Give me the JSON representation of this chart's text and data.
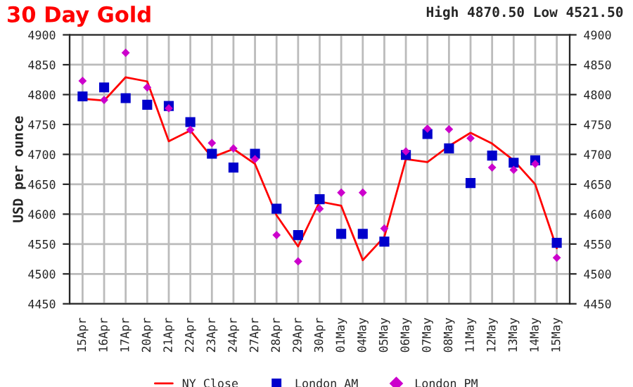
{
  "chart_data": {
    "type": "line",
    "title": "30 Day Gold",
    "subtitle": "High 4870.50 Low 4521.50",
    "ylabel": "USD per ounce",
    "categories": [
      "15Apr",
      "16Apr",
      "17Apr",
      "20Apr",
      "21Apr",
      "22Apr",
      "23Apr",
      "24Apr",
      "27Apr",
      "28Apr",
      "29Apr",
      "30Apr",
      "01May",
      "04May",
      "05May",
      "06May",
      "07May",
      "08May",
      "11May",
      "12May",
      "13May",
      "14May",
      "15May"
    ],
    "series": [
      {
        "name": "NY Close",
        "marker": "none",
        "color": "#ff0000",
        "values": [
          4793,
          4790,
          4829,
          4822,
          4722,
          4740,
          4695,
          4709,
          4684,
          4598,
          4546,
          4621,
          4614,
          4523,
          4562,
          4692,
          4687,
          4714,
          4736,
          4718,
          4690,
          4650,
          4543
        ]
      },
      {
        "name": "London AM",
        "type": "scatter",
        "marker": "square",
        "color": "#0000cc",
        "values": [
          4797,
          4812,
          4794,
          4783,
          4781,
          4754,
          4701,
          4678,
          4701,
          4609,
          4565,
          4625,
          4567,
          4567,
          4554,
          4699,
          4734,
          4710,
          4652,
          4698,
          4686,
          4690,
          4552
        ]
      },
      {
        "name": "London PM",
        "type": "scatter",
        "marker": "diamond",
        "color": "#cc00cc",
        "values": [
          4823,
          4791,
          4870,
          4812,
          4777,
          4741,
          4719,
          4710,
          4692,
          4565,
          4521,
          4609,
          4636,
          4636,
          4576,
          4705,
          4743,
          4742,
          4727,
          4678,
          4674,
          4684,
          4527
        ]
      }
    ],
    "ylim": [
      4450,
      4900
    ],
    "yticks": [
      4450,
      4500,
      4550,
      4600,
      4650,
      4700,
      4750,
      4800,
      4850,
      4900
    ],
    "y2lim": [
      4450,
      4900
    ],
    "y2ticks": [
      4450,
      4500,
      4550,
      4600,
      4650,
      4700,
      4750,
      4800,
      4850,
      4900
    ],
    "grid": true,
    "legend": "bottom"
  }
}
